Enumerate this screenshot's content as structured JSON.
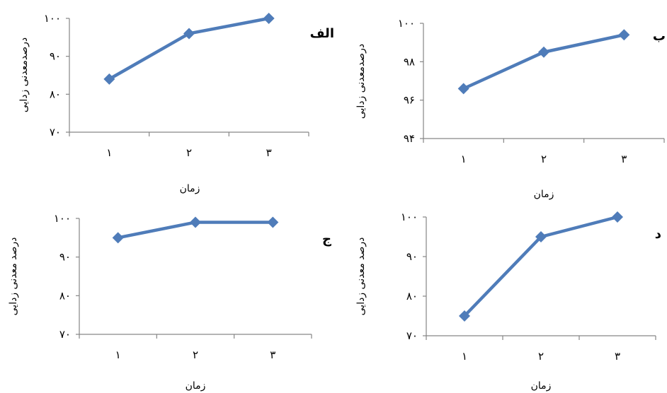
{
  "chart_data": [
    {
      "type": "line",
      "panel_label": "الف",
      "xlabel": "زمان",
      "ylabel": "درصدمعدنی زدایی",
      "categories": [
        "۱",
        "۲",
        "۳"
      ],
      "yticks": [
        "۷۰",
        "۸۰",
        "۹۰",
        "۱۰۰"
      ],
      "ylim": [
        70,
        100
      ],
      "series": [
        {
          "values": [
            84,
            96,
            100
          ]
        }
      ],
      "color": "#4F7CB9"
    },
    {
      "type": "line",
      "panel_label": "ب",
      "xlabel": "زمان",
      "ylabel": "درصدمعدنی زدایی",
      "categories": [
        "۱",
        "۲",
        "۳"
      ],
      "yticks": [
        "۹۴",
        "۹۶",
        "۹۸",
        "۱۰۰"
      ],
      "ylim": [
        94,
        100
      ],
      "series": [
        {
          "values": [
            96.6,
            98.5,
            99.4
          ]
        }
      ],
      "color": "#4F7CB9"
    },
    {
      "type": "line",
      "panel_label": "ج",
      "xlabel": "زمان",
      "ylabel": "درصد معدنی زدایی",
      "categories": [
        "۱",
        "۲",
        "۳"
      ],
      "yticks": [
        "۷۰",
        "۸۰",
        "۹۰",
        "۱۰۰"
      ],
      "ylim": [
        70,
        100
      ],
      "series": [
        {
          "values": [
            95,
            99,
            99
          ]
        }
      ],
      "color": "#4F7CB9"
    },
    {
      "type": "line",
      "panel_label": "د",
      "xlabel": "زمان",
      "ylabel": "درصد معدنی زدایی",
      "categories": [
        "۱",
        "۲",
        "۳"
      ],
      "yticks": [
        "۷۰",
        "۸۰",
        "۹۰",
        "۱۰۰"
      ],
      "ylim": [
        70,
        100
      ],
      "series": [
        {
          "values": [
            75,
            95,
            100
          ]
        }
      ],
      "color": "#4F7CB9"
    }
  ]
}
